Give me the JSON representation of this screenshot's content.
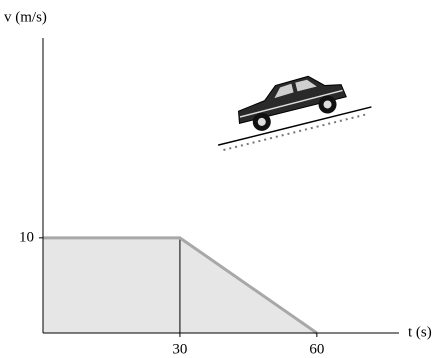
{
  "chart_data": {
    "type": "area",
    "x_label": "t (s)",
    "y_label": "v (m/s)",
    "x": [
      0,
      30,
      60
    ],
    "values": [
      10,
      10,
      0
    ],
    "color": "#a8a8a8",
    "fill": "#e6e6e6",
    "xlim": [
      0,
      78
    ],
    "ylim": [
      0,
      31
    ],
    "xticks": [
      30,
      60
    ],
    "yticks": [
      10
    ]
  }
}
